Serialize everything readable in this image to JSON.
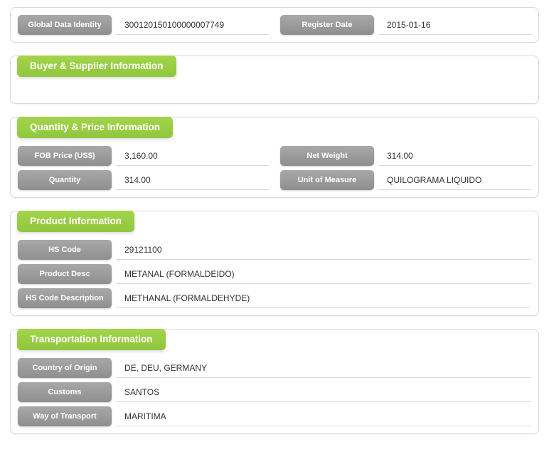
{
  "colors": {
    "header_bg_top": "#a4d44a",
    "header_bg_bottom": "#8fc73e",
    "pill_bg_top": "#a8a8a8",
    "pill_bg_bottom": "#8f8f8f",
    "panel_border": "#d9d9d9",
    "text": "#333333",
    "pill_text": "#ffffff"
  },
  "top": {
    "global_data_identity": {
      "label": "Global Data Identity",
      "value": "300120150100000007749"
    },
    "register_date": {
      "label": "Register Date",
      "value": "2015-01-16"
    }
  },
  "buyer_supplier": {
    "header": "Buyer & Supplier Information"
  },
  "quantity_price": {
    "header": "Quantity & Price Information",
    "fob_price": {
      "label": "FOB Price (US$)",
      "value": "3,160.00"
    },
    "net_weight": {
      "label": "Net Weight",
      "value": "314.00"
    },
    "quantity": {
      "label": "Quantity",
      "value": "314.00"
    },
    "unit_of_measure": {
      "label": "Unit of Measure",
      "value": "QUILOGRAMA LIQUIDO"
    }
  },
  "product": {
    "header": "Product Information",
    "hs_code": {
      "label": "HS Code",
      "value": "29121100"
    },
    "product_desc": {
      "label": "Product Desc",
      "value": "METANAL (FORMALDEIDO)"
    },
    "hs_code_desc": {
      "label": "HS Code Description",
      "value": "METHANAL (FORMALDEHYDE)"
    }
  },
  "transport": {
    "header": "Transportation Information",
    "country_of_origin": {
      "label": "Country of Origin",
      "value": "DE, DEU, GERMANY"
    },
    "customs": {
      "label": "Customs",
      "value": "SANTOS"
    },
    "way_of_transport": {
      "label": "Way of Transport",
      "value": "MARITIMA"
    }
  }
}
